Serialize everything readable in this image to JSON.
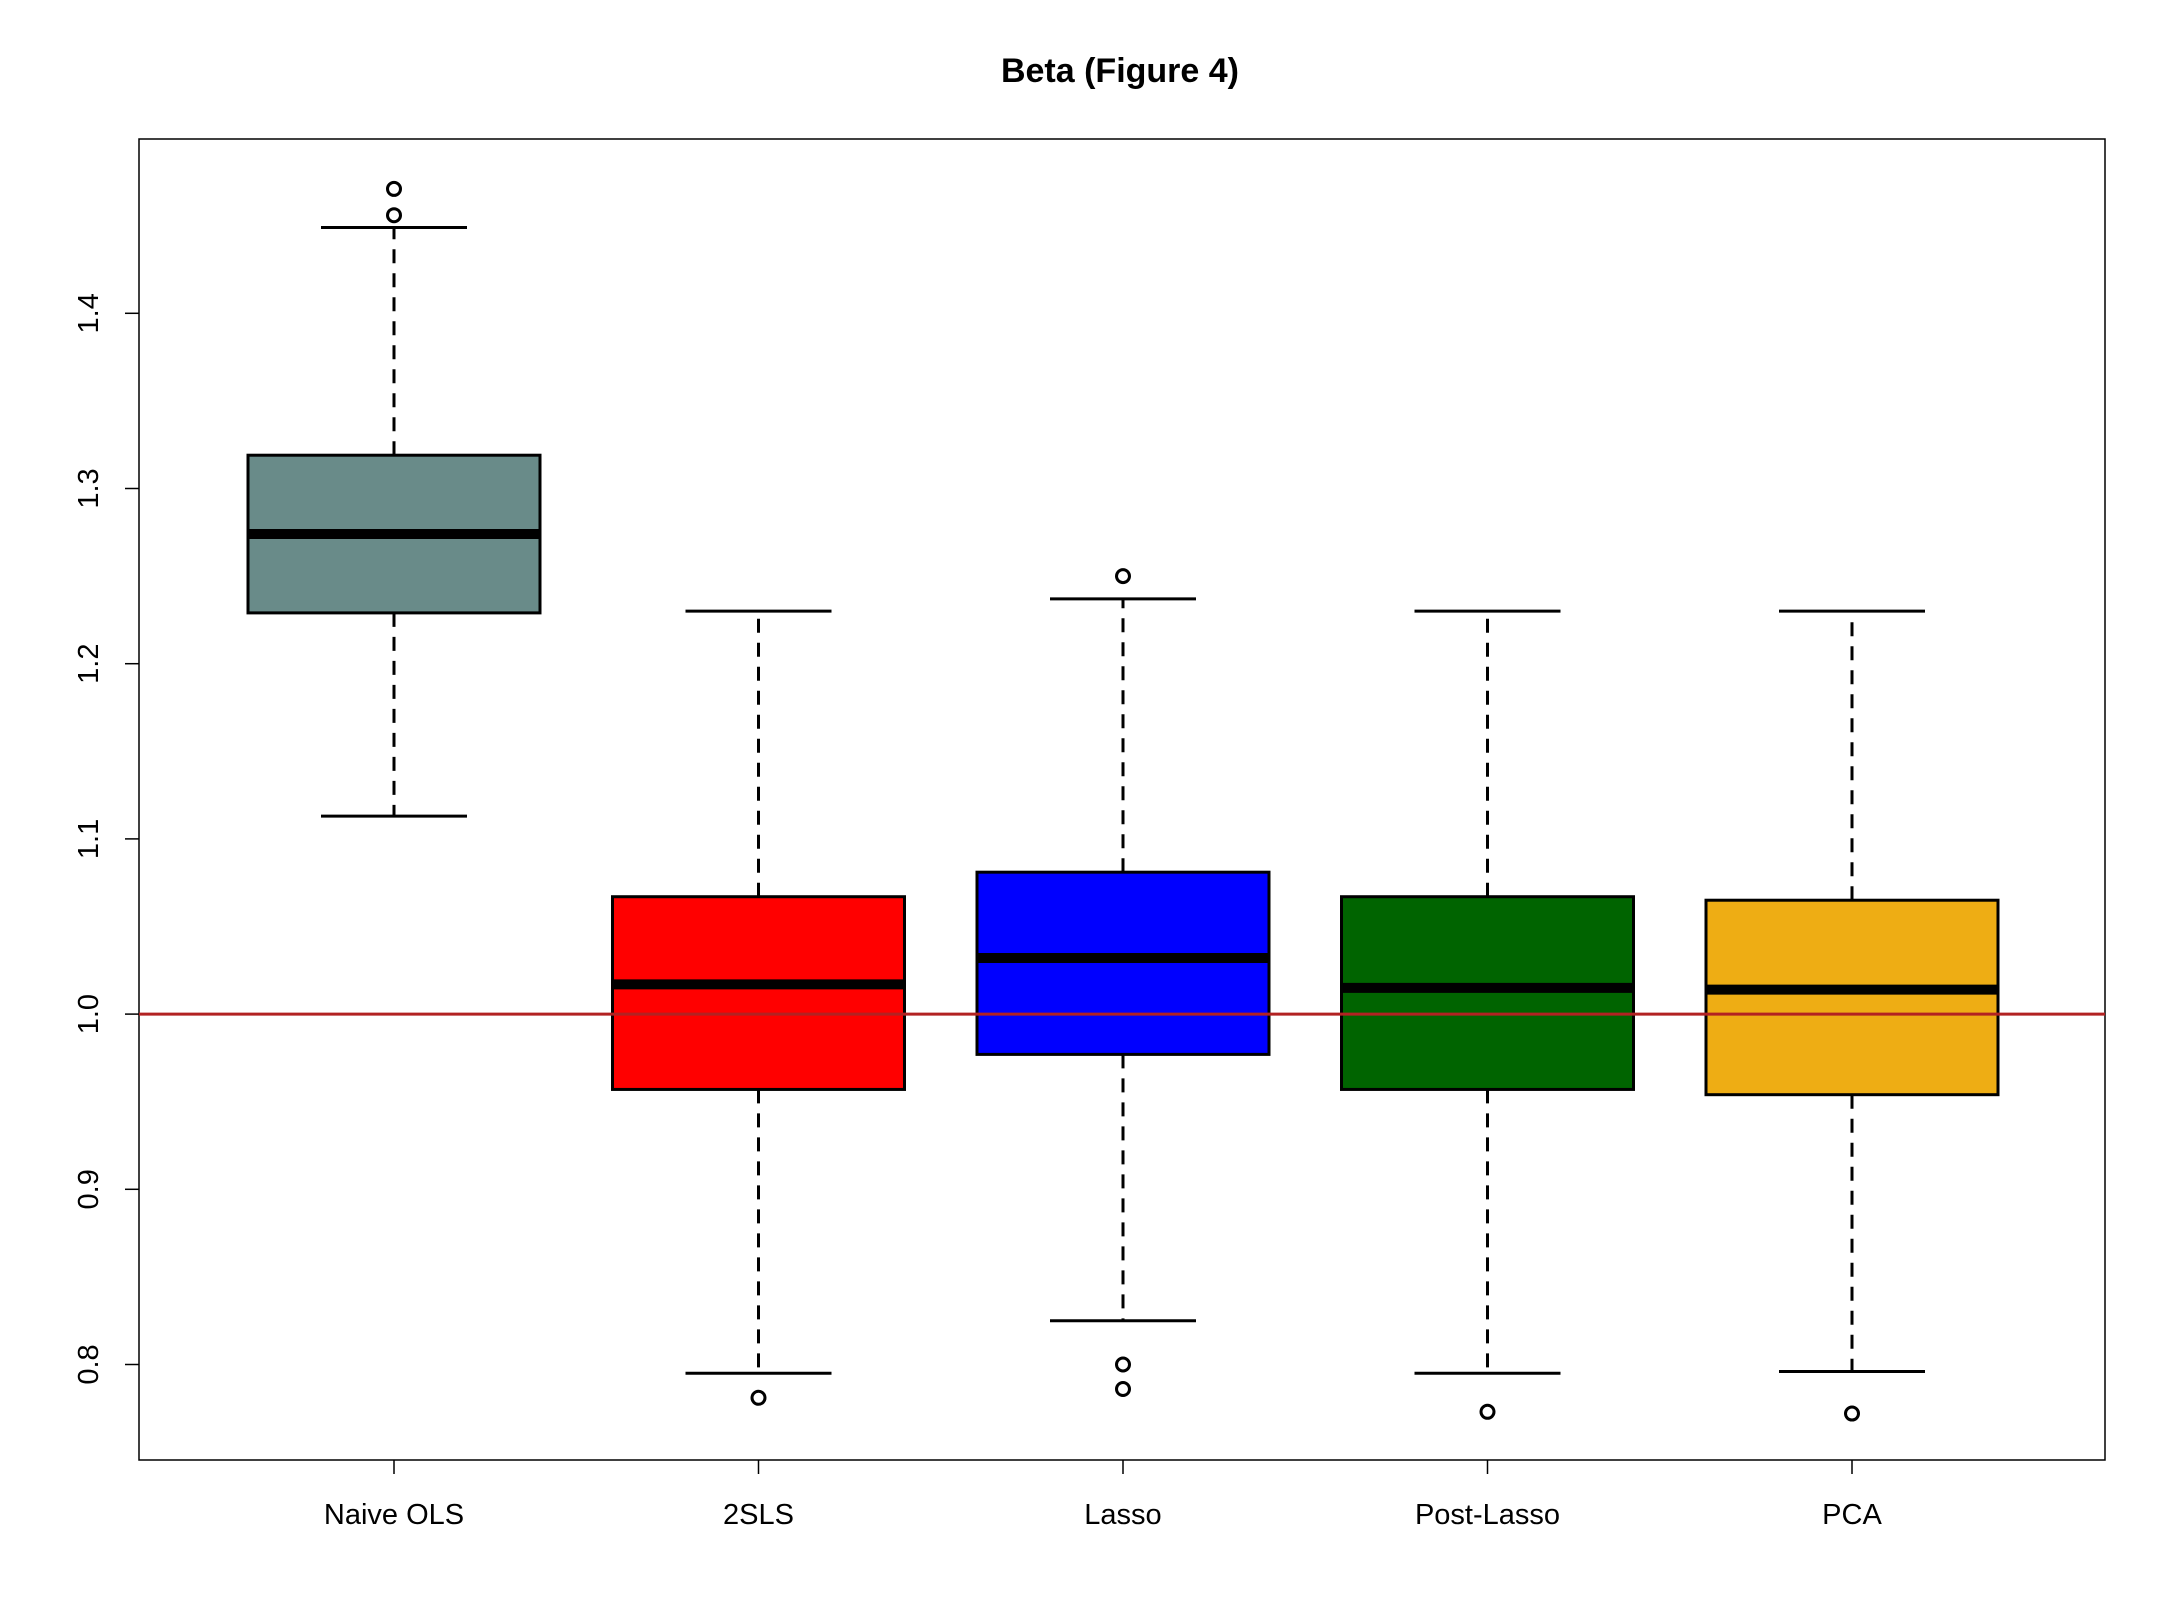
{
  "chart_data": {
    "type": "boxplot",
    "title": "Beta  (Figure 4)",
    "xlabel": "",
    "ylabel": "",
    "ylim": [
      0.745,
      1.5
    ],
    "yticks": [
      0.8,
      0.9,
      1.0,
      1.1,
      1.2,
      1.3,
      1.4
    ],
    "ytick_labels": [
      "0.8",
      "0.9",
      "1.0",
      "1.1",
      "1.2",
      "1.3",
      "1.4"
    ],
    "reference_line": {
      "y": 1.0,
      "color": "#B22222"
    },
    "grid": false,
    "categories": [
      "Naive OLS",
      "2SLS",
      "Lasso",
      "Post-Lasso",
      "PCA"
    ],
    "boxes": [
      {
        "name": "Naive OLS",
        "color": "#698B89",
        "whisker_low": 1.113,
        "q1": 1.229,
        "median": 1.274,
        "q3": 1.319,
        "whisker_high": 1.449,
        "outliers": [
          1.456,
          1.471
        ]
      },
      {
        "name": "2SLS",
        "color": "#FF0000",
        "whisker_low": 0.795,
        "q1": 0.957,
        "median": 1.017,
        "q3": 1.067,
        "whisker_high": 1.23,
        "outliers": [
          0.781
        ]
      },
      {
        "name": "Lasso",
        "color": "#0000FF",
        "whisker_low": 0.825,
        "q1": 0.977,
        "median": 1.032,
        "q3": 1.081,
        "whisker_high": 1.237,
        "outliers": [
          1.25,
          0.8,
          0.786
        ]
      },
      {
        "name": "Post-Lasso",
        "color": "#006400",
        "whisker_low": 0.795,
        "q1": 0.957,
        "median": 1.015,
        "q3": 1.067,
        "whisker_high": 1.23,
        "outliers": [
          0.773
        ]
      },
      {
        "name": "PCA",
        "color": "#EEAD14",
        "whisker_low": 0.796,
        "q1": 0.954,
        "median": 1.014,
        "q3": 1.065,
        "whisker_high": 1.23,
        "outliers": [
          0.772
        ]
      }
    ]
  }
}
